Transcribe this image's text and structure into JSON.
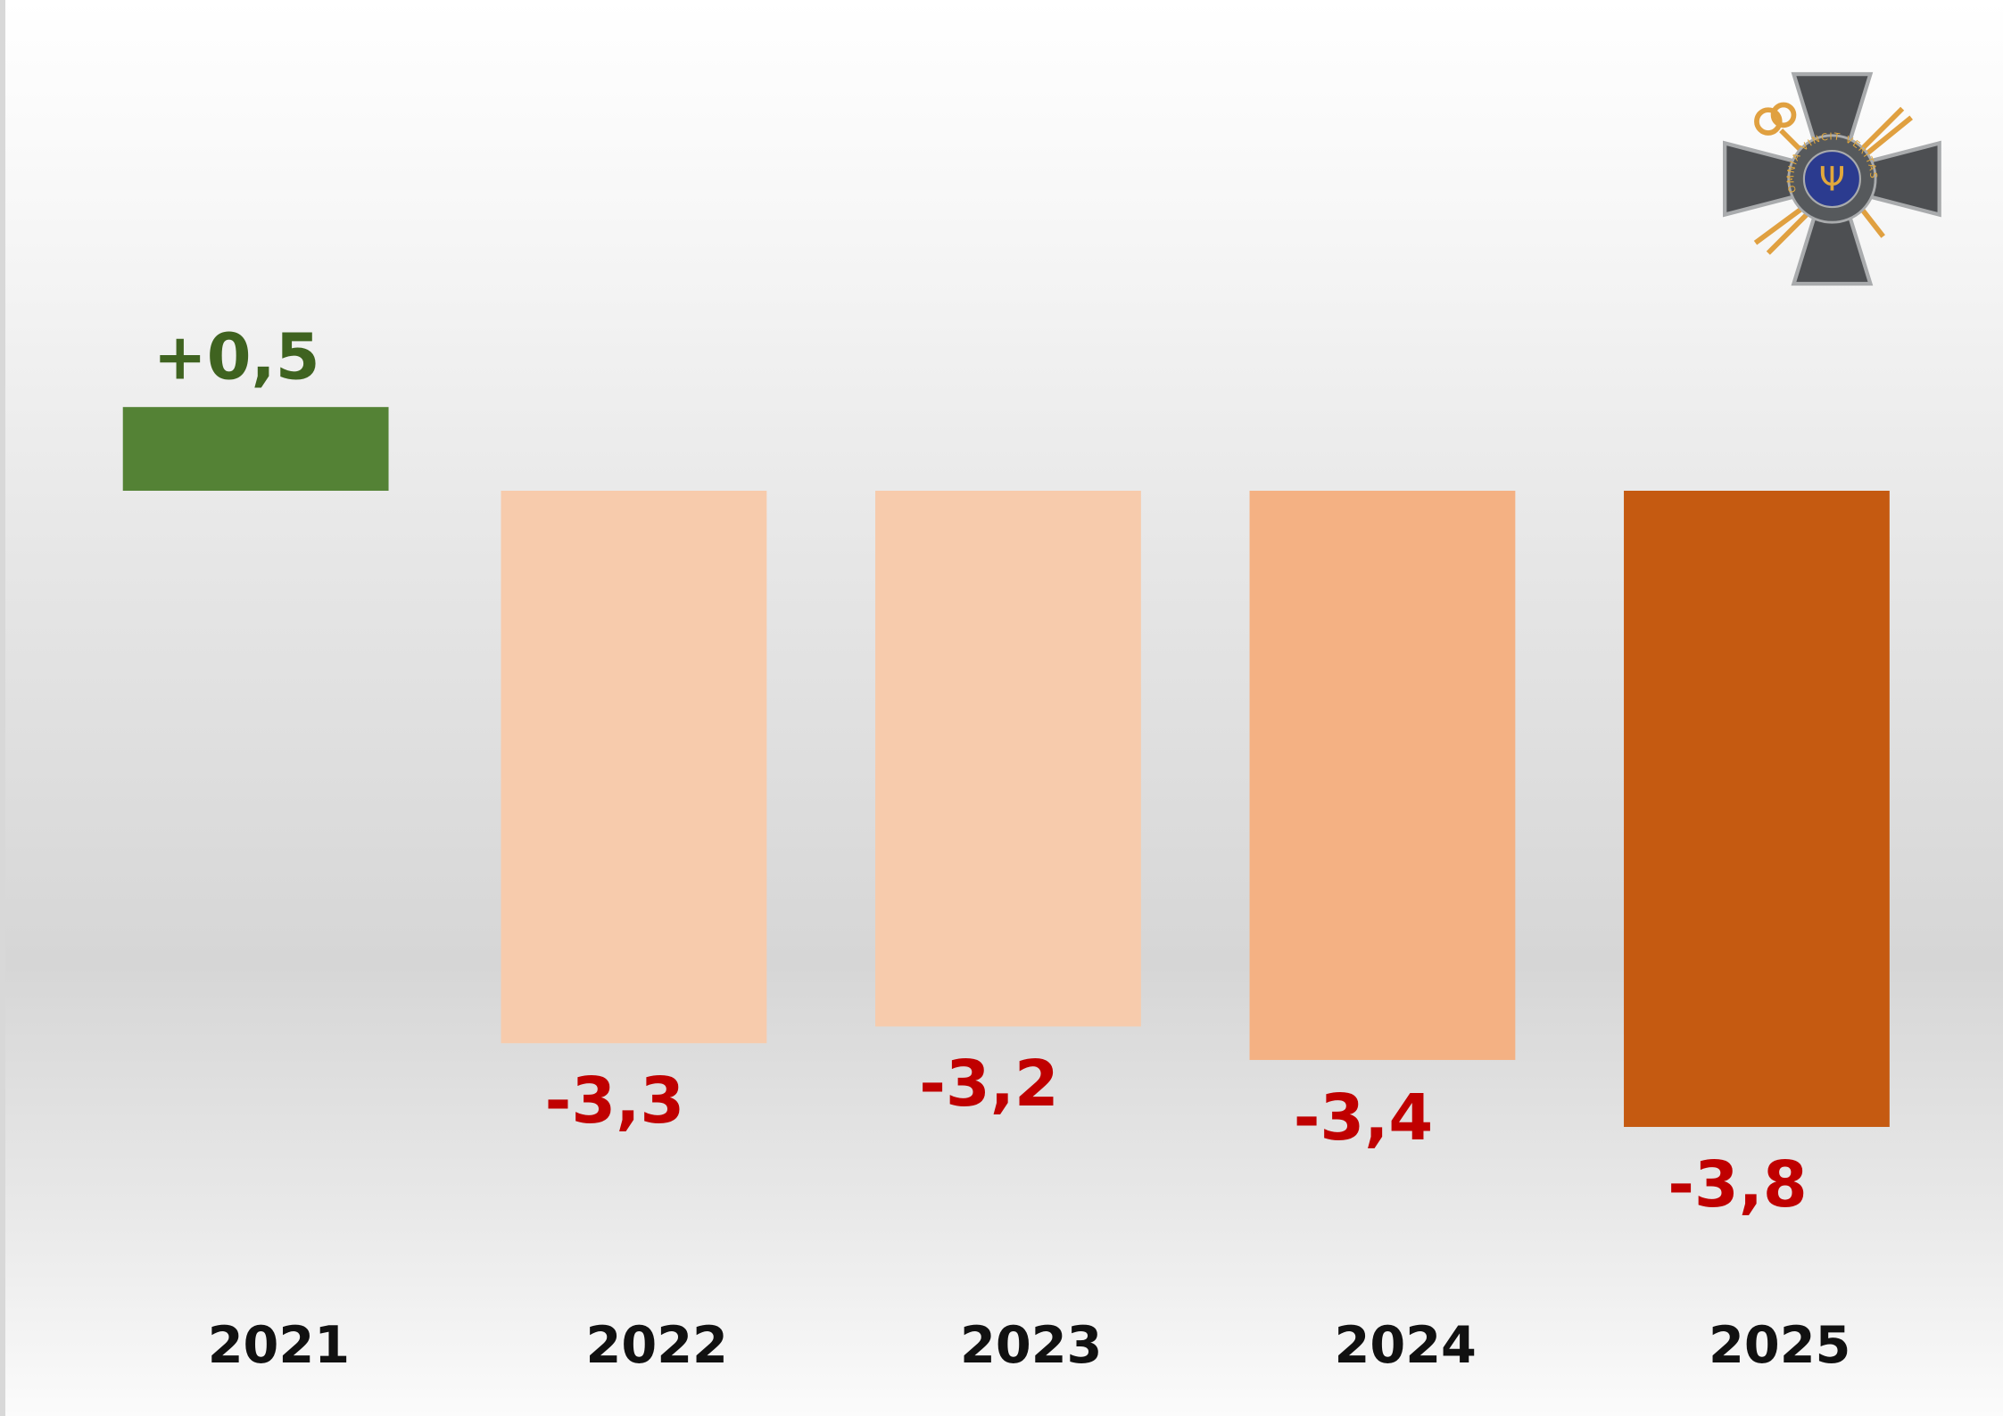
{
  "chart_data": {
    "type": "bar",
    "title": "",
    "xlabel": "",
    "ylabel": "",
    "categories": [
      "2021",
      "2022",
      "2023",
      "2024",
      "2025"
    ],
    "values": [
      0.5,
      -3.3,
      -3.2,
      -3.4,
      -3.8
    ],
    "value_labels": [
      "+0,5",
      "-3,3",
      "-3,2",
      "-3,4",
      "-3,8"
    ],
    "bar_colors": [
      "#548235",
      "#f7cbac",
      "#f7cbac",
      "#f4b183",
      "#c55a11"
    ],
    "label_colors": [
      "#3f6320",
      "#c00000",
      "#c00000",
      "#c00000",
      "#c00000"
    ],
    "ylim": [
      -4,
      1
    ],
    "grid": false,
    "legend": "none"
  },
  "logo": {
    "motto": "OMNIA VINCIT VERITAS"
  }
}
